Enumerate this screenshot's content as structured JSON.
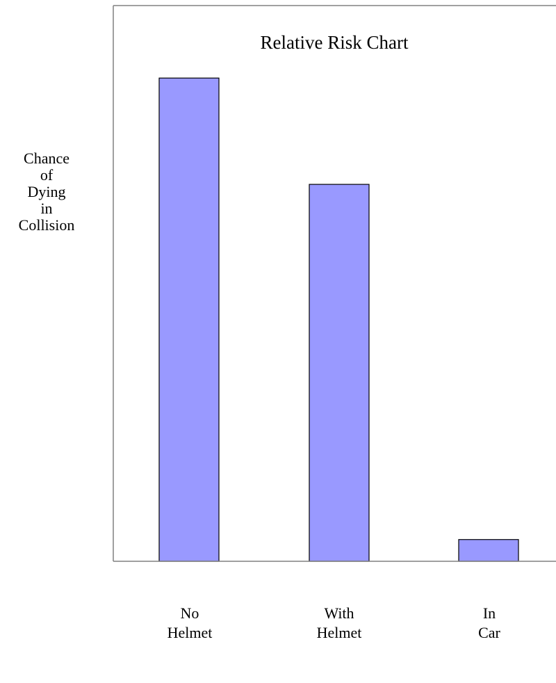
{
  "chart_data": {
    "type": "bar",
    "title": "Relative Risk Chart",
    "ylabel_lines": [
      "Chance",
      "of",
      "Dying",
      "in",
      "Collision"
    ],
    "categories": [
      [
        "No",
        "Helmet"
      ],
      [
        "With",
        "Helmet"
      ],
      [
        "In",
        "Car"
      ]
    ],
    "values": [
      100,
      78,
      4.5
    ],
    "ylim": [
      0,
      115
    ],
    "grid": false,
    "legend": "none",
    "bar_fill": "#9999ff",
    "bar_stroke": "#000000",
    "axis_color": "#808080"
  }
}
